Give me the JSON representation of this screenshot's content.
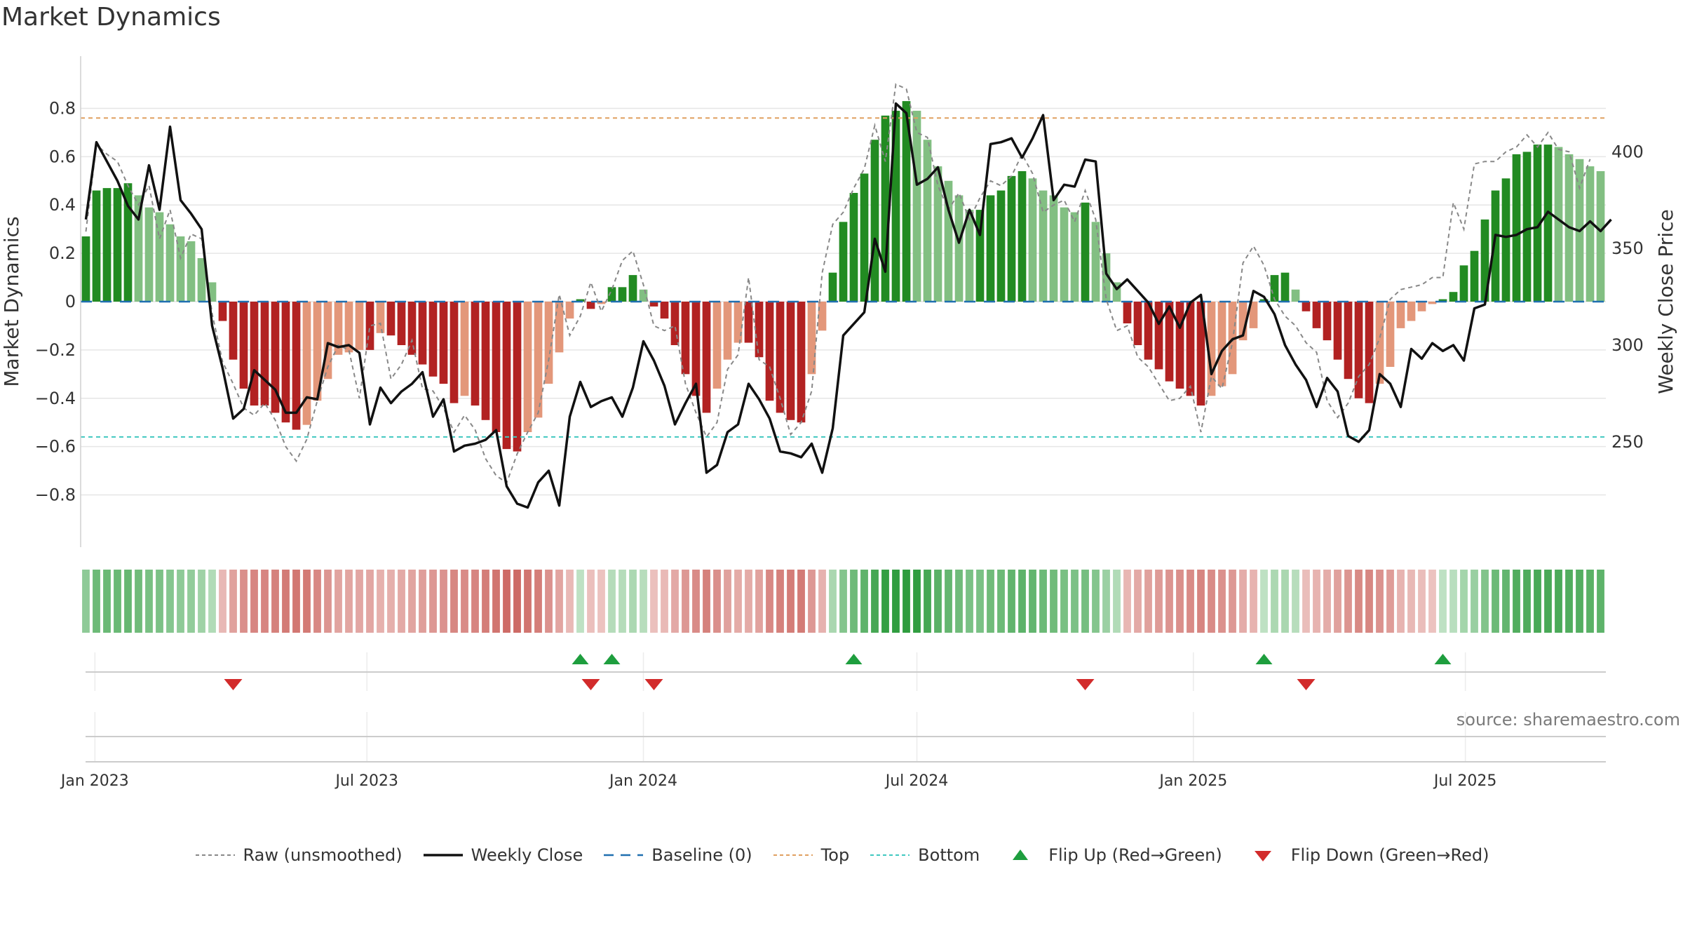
{
  "title": "Market Dynamics",
  "source_label": "source: sharemaestro.com",
  "colors": {
    "strong_green": "#228b22",
    "light_green": "#82bf82",
    "strong_red": "#b22222",
    "light_red": "#e3977a",
    "top_line": "#e0a060",
    "bottom_line": "#40c8c0",
    "baseline": "#1f6fb0",
    "close_line": "#111111",
    "raw_line": "#888888",
    "flip_up": "#1e9e3e",
    "flip_down": "#d22b2b"
  },
  "chart_data": {
    "type": "bar",
    "title": "Market Dynamics",
    "ylabel": "Market Dynamics",
    "y2label": "Weekly Close Price",
    "ylim": [
      -0.9,
      0.9
    ],
    "y2lim": [
      210,
      435
    ],
    "yticks": [
      0.8,
      0.6,
      0.4,
      0.2,
      0,
      -0.2,
      -0.4,
      -0.6,
      -0.8
    ],
    "yticklabels": [
      "0.8",
      "0.6",
      "0.4",
      "0.2",
      "0",
      "−0.2",
      "−0.4",
      "−0.6",
      "−0.8"
    ],
    "y2ticks": [
      400,
      350,
      300,
      250
    ],
    "y2ticklabels": [
      "400",
      "350",
      "300",
      "250"
    ],
    "xticks": [
      "2023-01-01",
      "2023-07-01",
      "2024-01-01",
      "2024-07-01",
      "2025-01-01",
      "2025-07-01"
    ],
    "xticklabels": [
      "Jan 2023",
      "Jul 2023",
      "Jan 2024",
      "Jul 2024",
      "Jan 2025",
      "Jul 2025"
    ],
    "start_date": "2022-12-26",
    "top_level": 0.76,
    "bottom_level": -0.56,
    "baseline_level": 0,
    "grid": true,
    "legend_position": "bottom",
    "momentum": [
      0.27,
      0.46,
      0.47,
      0.47,
      0.49,
      0.44,
      0.39,
      0.37,
      0.32,
      0.27,
      0.25,
      0.18,
      0.08,
      -0.08,
      -0.24,
      -0.36,
      -0.43,
      -0.43,
      -0.46,
      -0.5,
      -0.53,
      -0.51,
      -0.41,
      -0.32,
      -0.22,
      -0.21,
      -0.2,
      -0.2,
      -0.13,
      -0.14,
      -0.18,
      -0.22,
      -0.26,
      -0.31,
      -0.34,
      -0.42,
      -0.39,
      -0.43,
      -0.49,
      -0.54,
      -0.61,
      -0.62,
      -0.54,
      -0.48,
      -0.34,
      -0.21,
      -0.07,
      0.01,
      -0.03,
      -0.01,
      0.06,
      0.06,
      0.11,
      0.05,
      -0.02,
      -0.07,
      -0.18,
      -0.3,
      -0.39,
      -0.46,
      -0.36,
      -0.24,
      -0.17,
      -0.17,
      -0.23,
      -0.41,
      -0.46,
      -0.49,
      -0.5,
      -0.3,
      -0.12,
      0.12,
      0.33,
      0.45,
      0.53,
      0.67,
      0.77,
      0.79,
      0.83,
      0.79,
      0.67,
      0.56,
      0.5,
      0.44,
      0.38,
      0.38,
      0.44,
      0.46,
      0.52,
      0.54,
      0.51,
      0.46,
      0.44,
      0.39,
      0.37,
      0.41,
      0.33,
      0.2,
      0.08,
      -0.09,
      -0.18,
      -0.24,
      -0.28,
      -0.33,
      -0.36,
      -0.39,
      -0.43,
      -0.39,
      -0.35,
      -0.3,
      -0.16,
      -0.11,
      0.01,
      0.11,
      0.12,
      0.05,
      -0.04,
      -0.11,
      -0.16,
      -0.24,
      -0.32,
      -0.4,
      -0.42,
      -0.34,
      -0.27,
      -0.11,
      -0.08,
      -0.04,
      -0.01,
      0.01,
      0.04,
      0.15,
      0.21,
      0.34,
      0.46,
      0.51,
      0.61,
      0.62,
      0.65,
      0.65,
      0.64,
      0.61,
      0.59,
      0.56,
      0.54
    ],
    "close": [
      365,
      405,
      395,
      385,
      372,
      365,
      393,
      370,
      413,
      375,
      368,
      360,
      310,
      288,
      262,
      267,
      287,
      282,
      277,
      265,
      265,
      273,
      272,
      301,
      299,
      300,
      296,
      259,
      278,
      270,
      276,
      280,
      286,
      263,
      272,
      245,
      248,
      249,
      251,
      256,
      227,
      218,
      216,
      229,
      235,
      217,
      263,
      281,
      268,
      271,
      273,
      263,
      278,
      302,
      292,
      279,
      259,
      270,
      280,
      234,
      238,
      255,
      259,
      280,
      272,
      262,
      245,
      244,
      242,
      249,
      234,
      257,
      305,
      311,
      317,
      355,
      338,
      425,
      420,
      383,
      386,
      392,
      370,
      353,
      370,
      357,
      404,
      405,
      407,
      397,
      407,
      419,
      375,
      383,
      382,
      396,
      395,
      337,
      329,
      334,
      328,
      322,
      311,
      320,
      309,
      322,
      326,
      285,
      297,
      303,
      305,
      328,
      325,
      316,
      300,
      290,
      282,
      268,
      283,
      276,
      253,
      250,
      256,
      285,
      280,
      268,
      298,
      293,
      301,
      297,
      300,
      292,
      319,
      321,
      357,
      356,
      357,
      360,
      361,
      369,
      365,
      361,
      359,
      364,
      359,
      365
    ],
    "raw": [
      0.29,
      0.65,
      0.61,
      0.58,
      0.48,
      0.4,
      0.48,
      0.26,
      0.38,
      0.18,
      0.28,
      0.26,
      -0.05,
      -0.25,
      -0.34,
      -0.44,
      -0.47,
      -0.42,
      -0.49,
      -0.6,
      -0.66,
      -0.57,
      -0.41,
      -0.27,
      -0.18,
      -0.2,
      -0.4,
      -0.1,
      -0.09,
      -0.32,
      -0.26,
      -0.16,
      -0.36,
      -0.37,
      -0.44,
      -0.54,
      -0.47,
      -0.53,
      -0.65,
      -0.72,
      -0.75,
      -0.63,
      -0.54,
      -0.46,
      -0.24,
      0.03,
      -0.14,
      -0.06,
      0.08,
      -0.04,
      0.05,
      0.17,
      0.21,
      0.07,
      -0.1,
      -0.12,
      -0.1,
      -0.34,
      -0.46,
      -0.56,
      -0.5,
      -0.28,
      -0.22,
      0.1,
      -0.24,
      -0.27,
      -0.4,
      -0.55,
      -0.5,
      -0.37,
      0.12,
      0.32,
      0.37,
      0.47,
      0.55,
      0.73,
      0.58,
      0.9,
      0.88,
      0.7,
      0.68,
      0.48,
      0.38,
      0.45,
      0.34,
      0.43,
      0.5,
      0.48,
      0.52,
      0.61,
      0.53,
      0.37,
      0.4,
      0.42,
      0.33,
      0.46,
      0.34,
      0.01,
      -0.12,
      -0.1,
      -0.23,
      -0.27,
      -0.34,
      -0.41,
      -0.4,
      -0.35,
      -0.54,
      -0.31,
      -0.36,
      -0.17,
      0.16,
      0.23,
      0.15,
      0.01,
      -0.06,
      -0.1,
      -0.17,
      -0.21,
      -0.41,
      -0.48,
      -0.42,
      -0.31,
      -0.26,
      -0.15,
      0.01,
      0.05,
      0.06,
      0.07,
      0.1,
      0.1,
      0.41,
      0.3,
      0.57,
      0.58,
      0.58,
      0.62,
      0.64,
      0.69,
      0.64,
      0.7,
      0.63,
      0.62,
      0.47,
      0.59
    ],
    "flips": [
      {
        "type": "down",
        "date": "2023-04-03"
      },
      {
        "type": "up",
        "date": "2023-11-20"
      },
      {
        "type": "down",
        "date": "2023-11-27"
      },
      {
        "type": "up",
        "date": "2023-12-11"
      },
      {
        "type": "down",
        "date": "2024-01-08"
      },
      {
        "type": "up",
        "date": "2024-05-20"
      },
      {
        "type": "down",
        "date": "2024-10-21"
      },
      {
        "type": "up",
        "date": "2025-02-17"
      },
      {
        "type": "down",
        "date": "2025-03-17"
      },
      {
        "type": "up",
        "date": "2025-06-16"
      }
    ],
    "series": [
      {
        "name": "Raw (unsmoothed)"
      },
      {
        "name": "Weekly Close"
      },
      {
        "name": "Baseline (0)"
      },
      {
        "name": "Top"
      },
      {
        "name": "Bottom"
      },
      {
        "name": "Flip Up (Red→Green)"
      },
      {
        "name": "Flip Down (Green→Red)"
      }
    ]
  }
}
